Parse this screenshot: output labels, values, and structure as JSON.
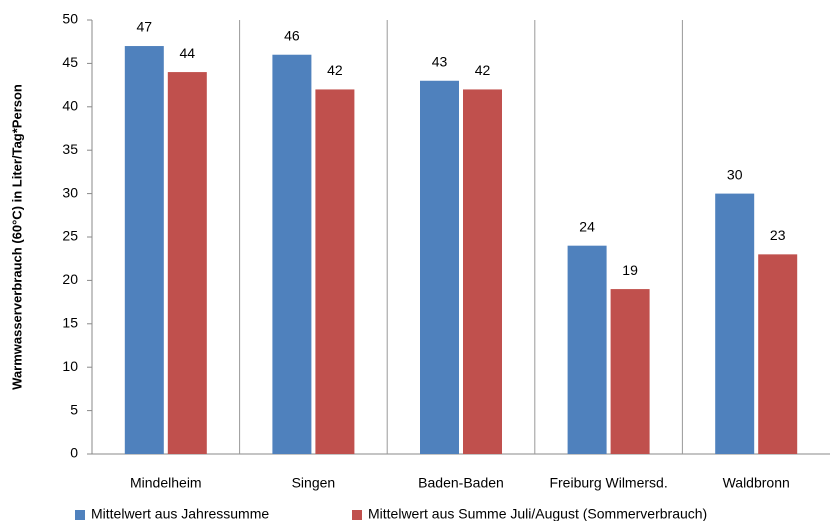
{
  "chart_data": {
    "type": "bar",
    "y_label": "Warmwasserverbrauch (60°C) in Liter/Tag*Person",
    "categories": [
      "Mindelheim",
      "Singen",
      "Baden-Baden",
      "Freiburg Wilmersd.",
      "Waldbronn"
    ],
    "series": [
      {
        "name": "Mittelwert aus Jahressumme",
        "color": "#4f81bd",
        "values": [
          47,
          46,
          43,
          24,
          30
        ]
      },
      {
        "name": "Mittelwert aus Summe Juli/August (Sommerverbrauch)",
        "color": "#c0504d",
        "values": [
          44,
          42,
          42,
          19,
          23
        ]
      }
    ],
    "ylim": [
      0,
      50
    ],
    "yticks": [
      0,
      5,
      10,
      15,
      20,
      25,
      30,
      35,
      40,
      45,
      50
    ],
    "legend": "bottom"
  }
}
